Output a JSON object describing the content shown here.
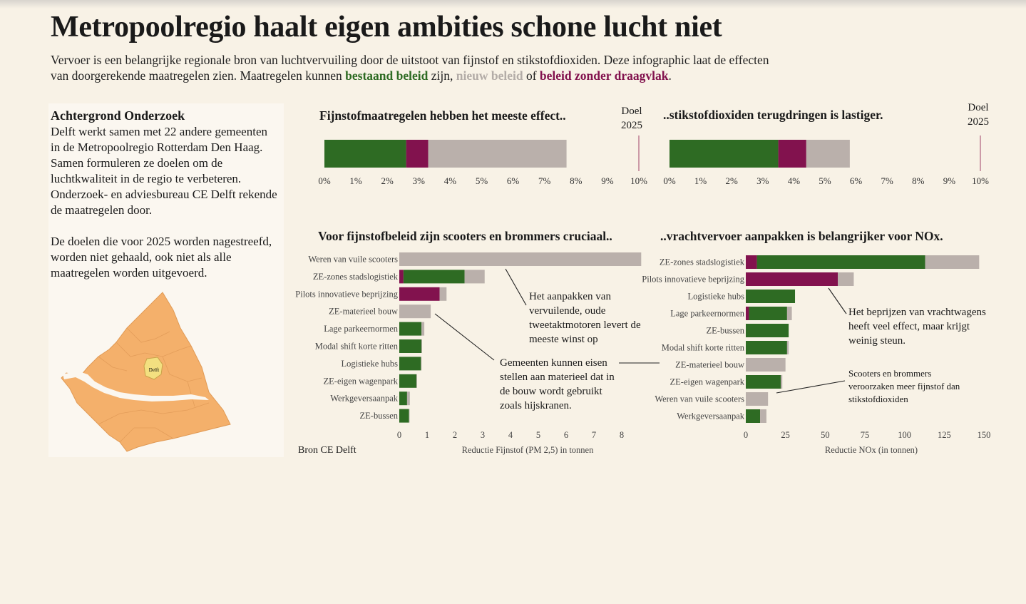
{
  "title": "Metropoolregio haalt eigen ambities schone lucht niet",
  "intro": {
    "part1": "Vervoer is een belangrijke regionale bron van luchtvervuiling door de uitstoot van fijnstof en stikstofdioxiden. Deze infographic laat de effecten van doorgerekende maatregelen zien. Maatregelen kunnen ",
    "existing": "bestaand beleid",
    "part2": " zijn, ",
    "new": "nieuw beleid",
    "part3": " of ",
    "nosupport": "beleid zonder draagvlak",
    "part4": "."
  },
  "background": {
    "title": "Achtergrond Onderzoek",
    "text1": "Delft werkt samen met 22 andere gemeenten in de Metropoolregio Rotterdam Den Haag.  Samen formuleren ze doelen om de luchtkwaliteit in de regio te verbeteren. Onderzoek- en adviesbureau CE Delft rekende de maatregelen door.",
    "text2": "De doelen die voor 2025 worden nagestreefd, worden niet gehaald, ook niet als alle maatregelen worden uitgevoerd.",
    "map_label": "Delft"
  },
  "colors": {
    "existing": "#2e6b23",
    "new": "#bab0ab",
    "nosupport": "#82124e",
    "goal_line": "#b56a85",
    "map_fill": "#f4b06b",
    "map_delft": "#f3e080"
  },
  "source": "Bron CE Delft",
  "annotations": {
    "scooters": "Het aanpakken van vervuilende, oude tweetaktmotoren levert de meeste winst op",
    "materieel": "Gemeenten kunnen eisen stellen aan materieel dat in de bouw wordt gebruikt zoals hijskranen.",
    "vracht": "Het beprijzen van vrachtwagens heeft veel effect, maar krijgt weinig steun.",
    "scooters_nox": "Scooters en brommers veroorzaken meer fijnstof dan stikstofdioxiden"
  },
  "chart_data": [
    {
      "type": "bar",
      "orientation": "horizontal-stacked",
      "title": "Fijnstofmaatregelen hebben het meeste effect..",
      "goal_label": "Doel 2025",
      "goal_value": 10,
      "xlim": [
        0,
        10
      ],
      "ticks": [
        "0%",
        "1%",
        "2%",
        "3%",
        "4%",
        "5%",
        "6%",
        "7%",
        "8%",
        "9%",
        "10%"
      ],
      "segments": [
        {
          "name": "bestaand beleid",
          "value": 2.6
        },
        {
          "name": "beleid zonder draagvlak",
          "value": 0.7
        },
        {
          "name": "nieuw beleid",
          "value": 4.4
        }
      ]
    },
    {
      "type": "bar",
      "orientation": "horizontal-stacked",
      "title": "..stikstofdioxiden terugdringen is lastiger.",
      "goal_label": "Doel 2025",
      "goal_value": 10,
      "xlim": [
        0,
        10
      ],
      "ticks": [
        "0%",
        "1%",
        "2%",
        "3%",
        "4%",
        "5%",
        "6%",
        "7%",
        "8%",
        "9%",
        "10%"
      ],
      "segments": [
        {
          "name": "bestaand beleid",
          "value": 3.5
        },
        {
          "name": "beleid zonder draagvlak",
          "value": 0.9
        },
        {
          "name": "nieuw beleid",
          "value": 1.4
        }
      ]
    },
    {
      "type": "bar",
      "orientation": "horizontal-stacked",
      "title": "Voor fijnstofbeleid zijn scooters en brommers cruciaal..",
      "xlabel": "Reductie Fijnstof (PM 2,5)  in tonnen",
      "xlim": [
        0,
        8.5
      ],
      "ticks": [
        0,
        1,
        2,
        3,
        4,
        5,
        6,
        7,
        8
      ],
      "categories": [
        "Weren van vuile scooters",
        "ZE-zones stadslogistiek",
        "Pilots innovatieve beprijzing",
        "ZE-materieel bouw",
        "Lage parkeernormen",
        "Modal shift korte ritten",
        "Logistieke hubs",
        "ZE-eigen wagenpark",
        "Werkgeversaanpak",
        "ZE-bussen"
      ],
      "series": [
        {
          "name": "beleid zonder draagvlak",
          "values": [
            0,
            0.15,
            1.45,
            0,
            0,
            0,
            0,
            0,
            0,
            0
          ]
        },
        {
          "name": "bestaand beleid",
          "values": [
            0,
            2.2,
            0,
            0,
            0.8,
            0.8,
            0.78,
            0.62,
            0.28,
            0.35
          ]
        },
        {
          "name": "nieuw beleid",
          "values": [
            8.7,
            0.72,
            0.25,
            1.13,
            0.1,
            0.02,
            0.02,
            0.02,
            0.1,
            0.02
          ]
        }
      ]
    },
    {
      "type": "bar",
      "orientation": "horizontal-stacked",
      "title": "..vrachtvervoer aanpakken is belangrijker voor NOx.",
      "xlabel": "Reductie NOx (in tonnen)",
      "xlim": [
        0,
        150
      ],
      "ticks": [
        0,
        25,
        50,
        75,
        100,
        125,
        150
      ],
      "categories": [
        "ZE-zones stadslogistiek",
        "Pilots innovatieve beprijzing",
        "Logistieke hubs",
        "Lage parkeernormen",
        "ZE-bussen",
        "Modal shift korte ritten",
        "ZE-materieel bouw",
        "ZE-eigen wagenpark",
        "Weren van vuile scooters",
        "Werkgeversaanpak"
      ],
      "series": [
        {
          "name": "beleid zonder draagvlak",
          "values": [
            7,
            58,
            0,
            2,
            0,
            0,
            0,
            0,
            0,
            0
          ]
        },
        {
          "name": "bestaand beleid",
          "values": [
            106,
            0,
            31,
            24,
            27,
            26,
            0,
            22,
            0,
            9
          ]
        },
        {
          "name": "nieuw beleid",
          "values": [
            34,
            10,
            0,
            3,
            0,
            1,
            25,
            1,
            14,
            4
          ]
        }
      ]
    }
  ]
}
